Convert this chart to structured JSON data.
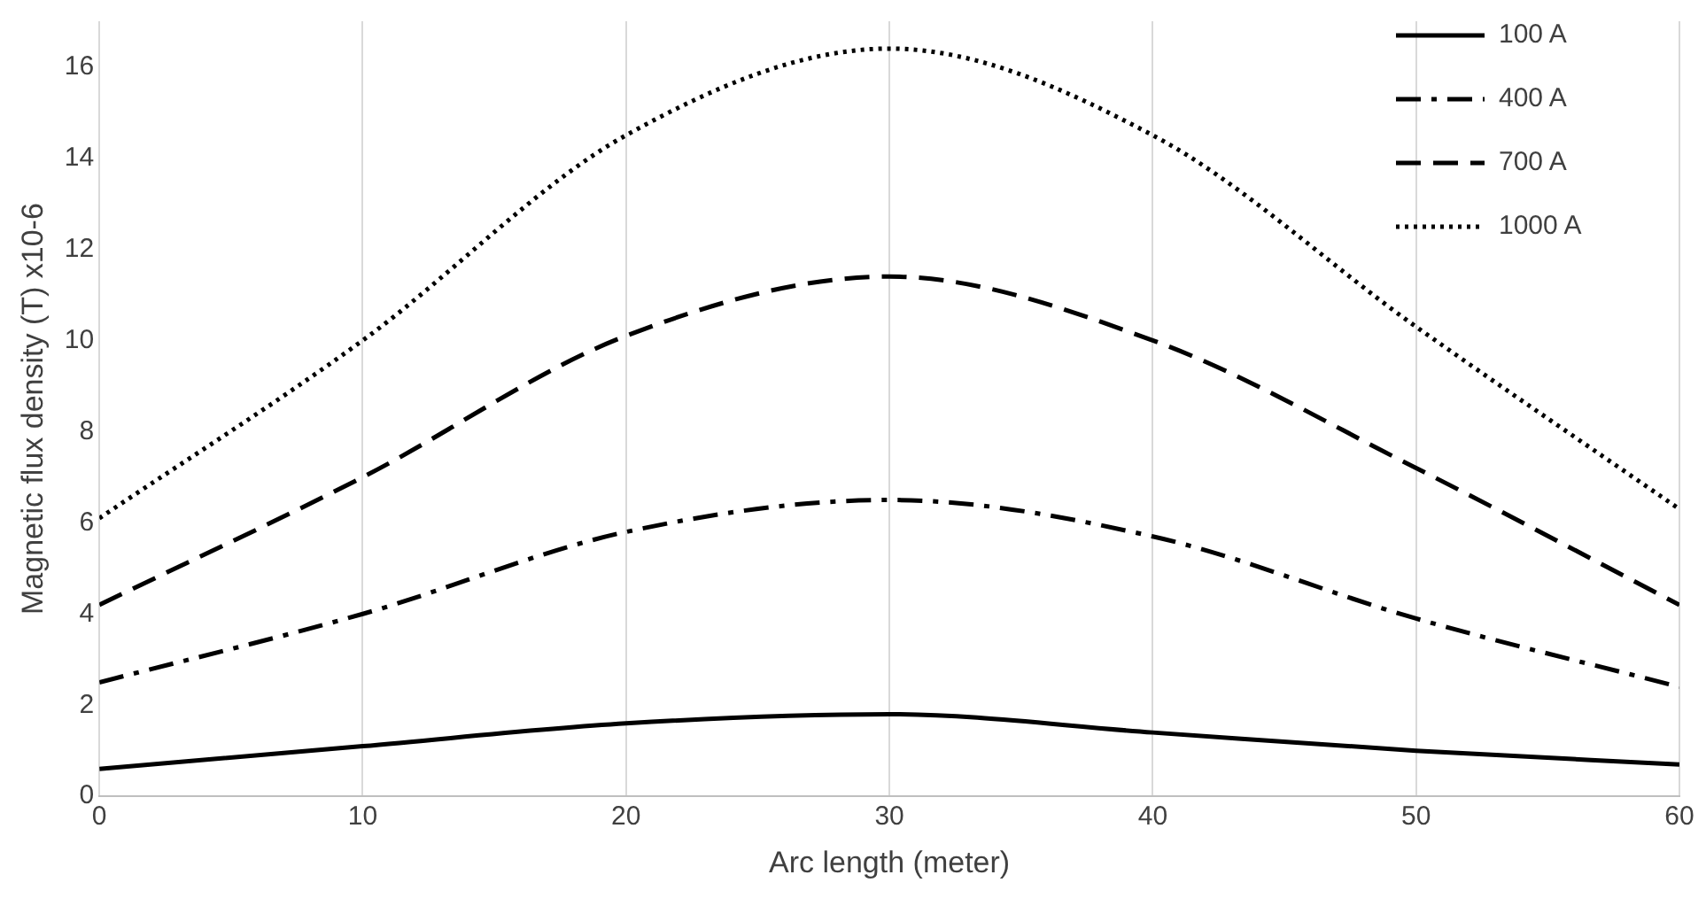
{
  "chart_data": {
    "type": "line",
    "xlabel": "Arc length (meter)",
    "ylabel": "Magnetic flux density (T) x10-6",
    "x": [
      0,
      10,
      20,
      30,
      40,
      50,
      60
    ],
    "xlim": [
      0,
      60
    ],
    "xticks": [
      0,
      10,
      20,
      30,
      40,
      50,
      60
    ],
    "ylim": [
      0,
      17
    ],
    "yticks": [
      0,
      2,
      4,
      6,
      8,
      10,
      12,
      14,
      16
    ],
    "grid": "x",
    "legend": "top right",
    "marker": "none",
    "series": [
      {
        "name": "100 A",
        "color": "#000000",
        "line_style": "solid",
        "values": [
          0.6,
          1.1,
          1.6,
          1.8,
          1.4,
          1.0,
          0.7
        ]
      },
      {
        "name": "400 A",
        "color": "#000000",
        "line_style": "dashdot",
        "values": [
          2.5,
          4.0,
          5.8,
          6.5,
          5.7,
          3.9,
          2.4
        ]
      },
      {
        "name": "700 A",
        "color": "#000000",
        "line_style": "dashed",
        "values": [
          4.2,
          7.0,
          10.1,
          11.4,
          10.0,
          7.2,
          4.2
        ]
      },
      {
        "name": "1000 A",
        "color": "#000000",
        "line_style": "dotted",
        "values": [
          6.1,
          10.0,
          14.5,
          16.4,
          14.5,
          10.3,
          6.3
        ]
      }
    ]
  }
}
